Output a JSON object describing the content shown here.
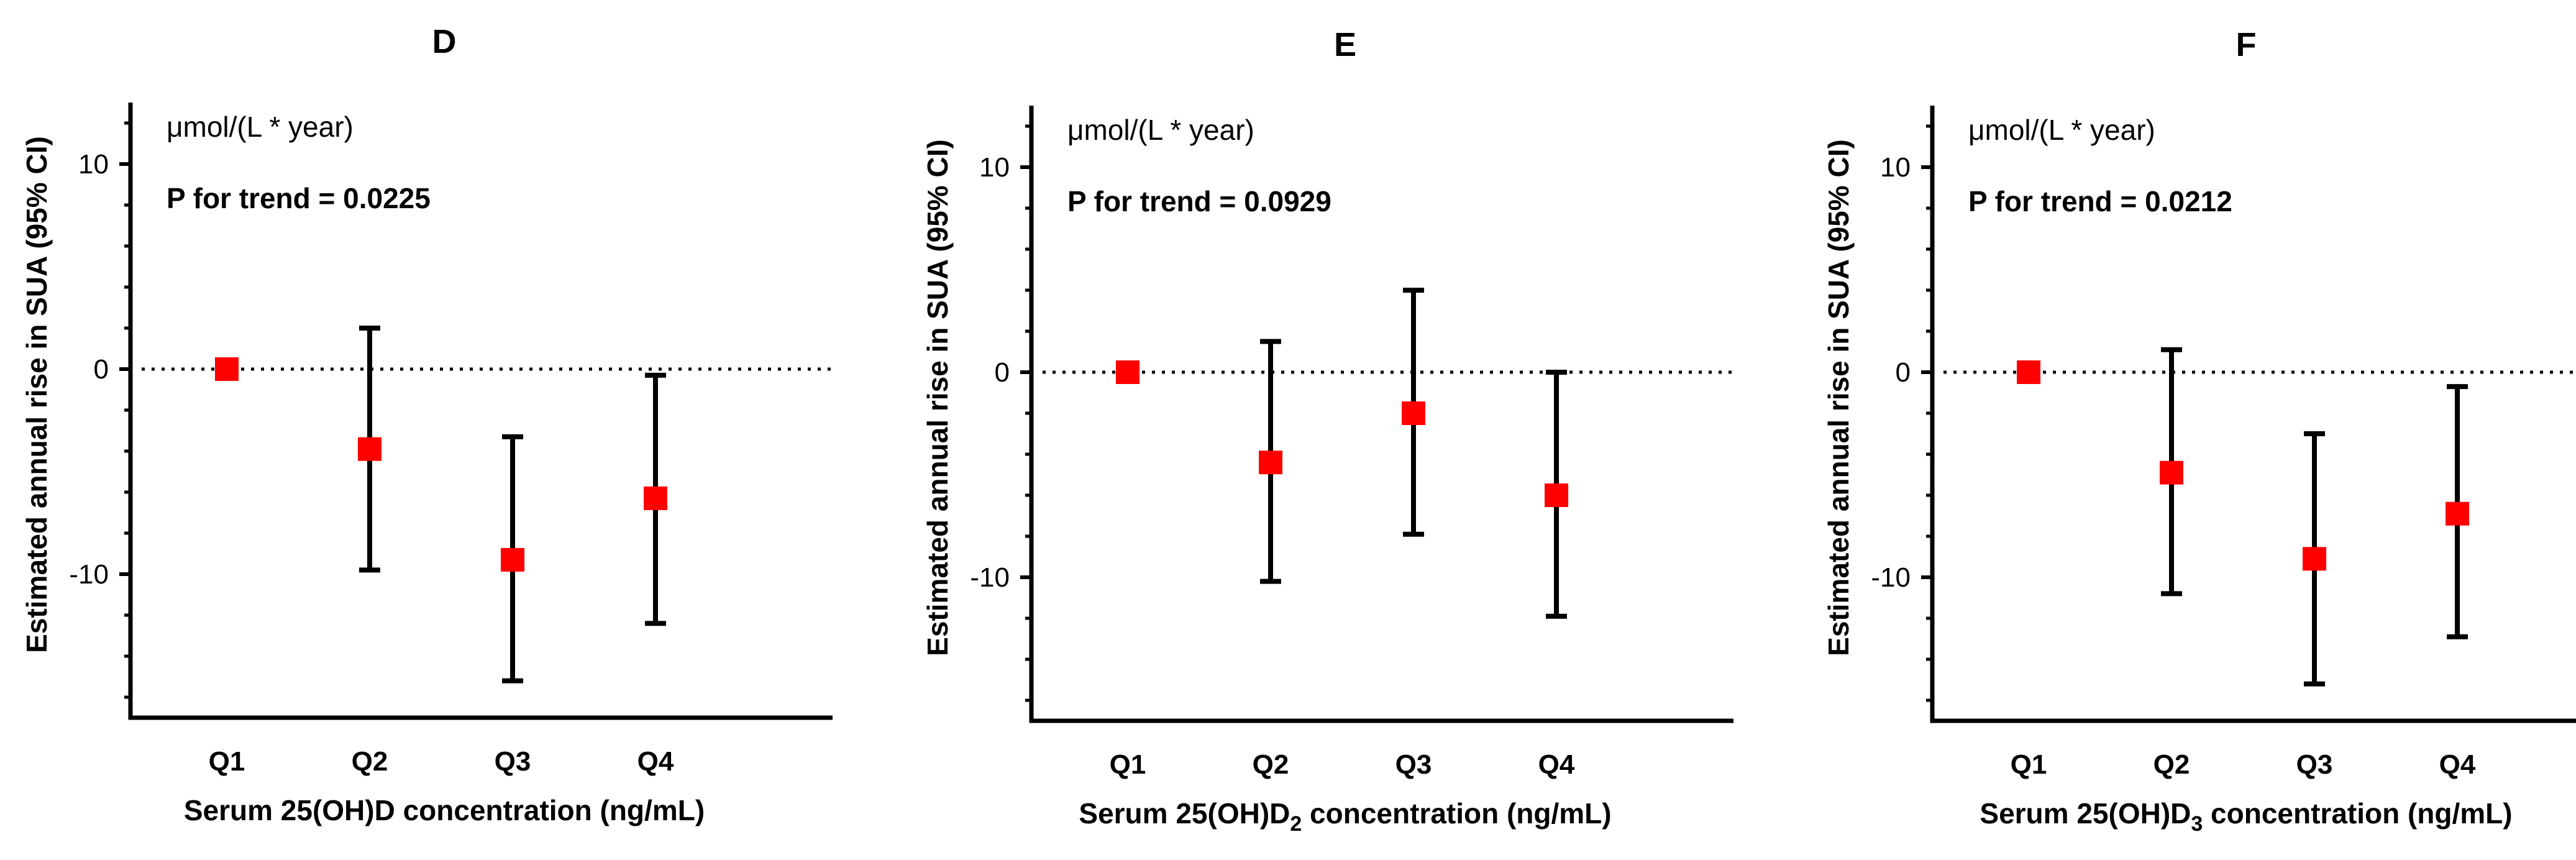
{
  "chart_data": [
    {
      "type": "scatter",
      "panel": "D",
      "title": "D",
      "unit_note": "μmol/(L * year)",
      "annotation": "P for trend = 0.0225",
      "ylabel": "Estimated annual rise in SUA (95% CI)",
      "xlabel": {
        "prefix": "Serum 25(OH)D",
        "subscript": "",
        "suffix": " concentration (ng/mL)"
      },
      "categories": [
        "Q1",
        "Q2",
        "Q3",
        "Q4"
      ],
      "values": [
        0,
        -3.9,
        -9.3,
        -6.3
      ],
      "ci_lower": [
        0,
        -9.8,
        -15.2,
        -12.4
      ],
      "ci_upper": [
        0,
        2.0,
        -3.3,
        -0.3
      ],
      "ylim": [
        -17,
        13
      ],
      "yticks": [
        10,
        0,
        -10
      ],
      "reference_line": 0
    },
    {
      "type": "scatter",
      "panel": "E",
      "title": "E",
      "unit_note": "μmol/(L * year)",
      "annotation": "P for trend = 0.0929",
      "ylabel": "Estimated annual rise in SUA (95% CI)",
      "xlabel": {
        "prefix": "Serum 25(OH)D",
        "subscript": "2",
        "suffix": " concentration (ng/mL)"
      },
      "categories": [
        "Q1",
        "Q2",
        "Q3",
        "Q4"
      ],
      "values": [
        0,
        -4.4,
        -2.0,
        -6.0
      ],
      "ci_lower": [
        0,
        -10.2,
        -7.9,
        -11.9
      ],
      "ci_upper": [
        0,
        1.5,
        4.0,
        0.0
      ],
      "ylim": [
        -17,
        13
      ],
      "yticks": [
        10,
        0,
        -10
      ],
      "reference_line": 0
    },
    {
      "type": "scatter",
      "panel": "F",
      "title": "F",
      "unit_note": "μmol/(L * year)",
      "annotation": "P for trend = 0.0212",
      "ylabel": "Estimated annual rise in SUA (95% CI)",
      "xlabel": {
        "prefix": "Serum 25(OH)D",
        "subscript": "3",
        "suffix": " concentration (ng/mL)"
      },
      "categories": [
        "Q1",
        "Q2",
        "Q3",
        "Q4"
      ],
      "values": [
        0,
        -4.9,
        -9.1,
        -6.9
      ],
      "ci_lower": [
        0,
        -10.8,
        -15.2,
        -12.9
      ],
      "ci_upper": [
        0,
        1.1,
        -3.0,
        -0.7
      ],
      "ylim": [
        -17,
        13
      ],
      "yticks": [
        10,
        0,
        -10
      ],
      "reference_line": 0
    }
  ],
  "colors": {
    "marker": "#ff0000",
    "axis": "#000000",
    "errorbar": "#000000"
  }
}
